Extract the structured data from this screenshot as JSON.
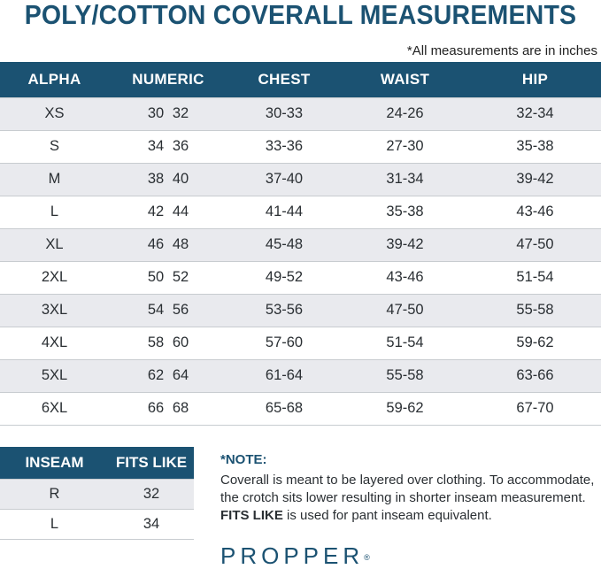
{
  "title": "POLY/COTTON COVERALL MEASUREMENTS",
  "units_note": "*All measurements are in inches",
  "main_table": {
    "headers": [
      "ALPHA",
      "NUMERIC",
      "CHEST",
      "WAIST",
      "HIP"
    ],
    "rows": [
      {
        "alpha": "XS",
        "num1": "30",
        "num2": "32",
        "chest": "30-33",
        "waist": "24-26",
        "hip": "32-34"
      },
      {
        "alpha": "S",
        "num1": "34",
        "num2": "36",
        "chest": "33-36",
        "waist": "27-30",
        "hip": "35-38"
      },
      {
        "alpha": "M",
        "num1": "38",
        "num2": "40",
        "chest": "37-40",
        "waist": "31-34",
        "hip": "39-42"
      },
      {
        "alpha": "L",
        "num1": "42",
        "num2": "44",
        "chest": "41-44",
        "waist": "35-38",
        "hip": "43-46"
      },
      {
        "alpha": "XL",
        "num1": "46",
        "num2": "48",
        "chest": "45-48",
        "waist": "39-42",
        "hip": "47-50"
      },
      {
        "alpha": "2XL",
        "num1": "50",
        "num2": "52",
        "chest": "49-52",
        "waist": "43-46",
        "hip": "51-54"
      },
      {
        "alpha": "3XL",
        "num1": "54",
        "num2": "56",
        "chest": "53-56",
        "waist": "47-50",
        "hip": "55-58"
      },
      {
        "alpha": "4XL",
        "num1": "58",
        "num2": "60",
        "chest": "57-60",
        "waist": "51-54",
        "hip": "59-62"
      },
      {
        "alpha": "5XL",
        "num1": "62",
        "num2": "64",
        "chest": "61-64",
        "waist": "55-58",
        "hip": "63-66"
      },
      {
        "alpha": "6XL",
        "num1": "66",
        "num2": "68",
        "chest": "65-68",
        "waist": "59-62",
        "hip": "67-70"
      }
    ]
  },
  "inseam_table": {
    "headers": [
      "INSEAM",
      "FITS LIKE"
    ],
    "rows": [
      {
        "inseam": "R",
        "fits_like": "32"
      },
      {
        "inseam": "L",
        "fits_like": "34"
      }
    ]
  },
  "note": {
    "heading": "*NOTE:",
    "text_before": "Coverall is meant to be layered over clothing. To accommodate, the crotch sits lower resulting in shorter inseam measurement. ",
    "text_bold": "FITS LIKE",
    "text_after": " is used for pant inseam equivalent."
  },
  "brand": {
    "name": "PROPPER",
    "mark": "®"
  },
  "colors": {
    "header_bg": "#1b5272",
    "row_alt": "#e9eaee",
    "brand": "#1b5272"
  }
}
